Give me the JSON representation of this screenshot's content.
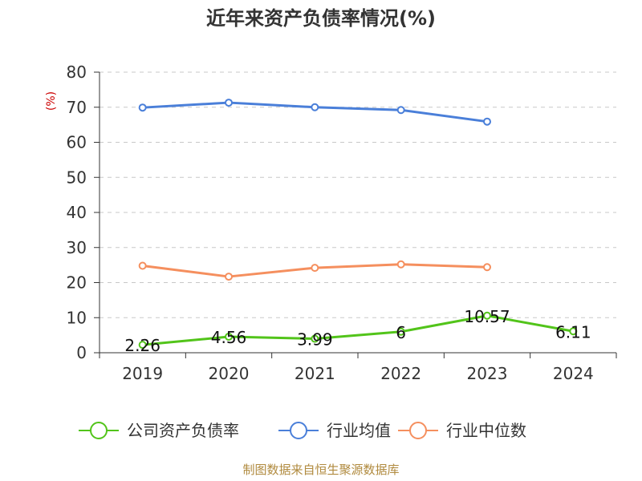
{
  "chart_data": {
    "type": "line",
    "title": "近年来资产负债率情况(%)",
    "ylabel": "(%)",
    "xlabel": "",
    "categories": [
      "2019",
      "2020",
      "2021",
      "2022",
      "2023",
      "2024"
    ],
    "ylim": [
      0,
      80
    ],
    "yticks": [
      0,
      10,
      20,
      30,
      40,
      50,
      60,
      70,
      80
    ],
    "grid": true,
    "legend_position": "bottom",
    "series": [
      {
        "name": "公司资产负债率",
        "color": "#52c41a",
        "values": [
          2.26,
          4.56,
          3.99,
          6,
          10.57,
          6.11
        ],
        "labels": [
          "2.26",
          "4.56",
          "3.99",
          "6",
          "10.57",
          "6.11"
        ]
      },
      {
        "name": "行业均值",
        "color": "#4a7fd9",
        "values": [
          69.9,
          71.3,
          70.0,
          69.2,
          65.9,
          null
        ]
      },
      {
        "name": "行业中位数",
        "color": "#f58f5e",
        "values": [
          24.8,
          21.7,
          24.2,
          25.2,
          24.4,
          null
        ]
      }
    ]
  },
  "footer": {
    "source": "制图数据来自恒生聚源数据库"
  }
}
